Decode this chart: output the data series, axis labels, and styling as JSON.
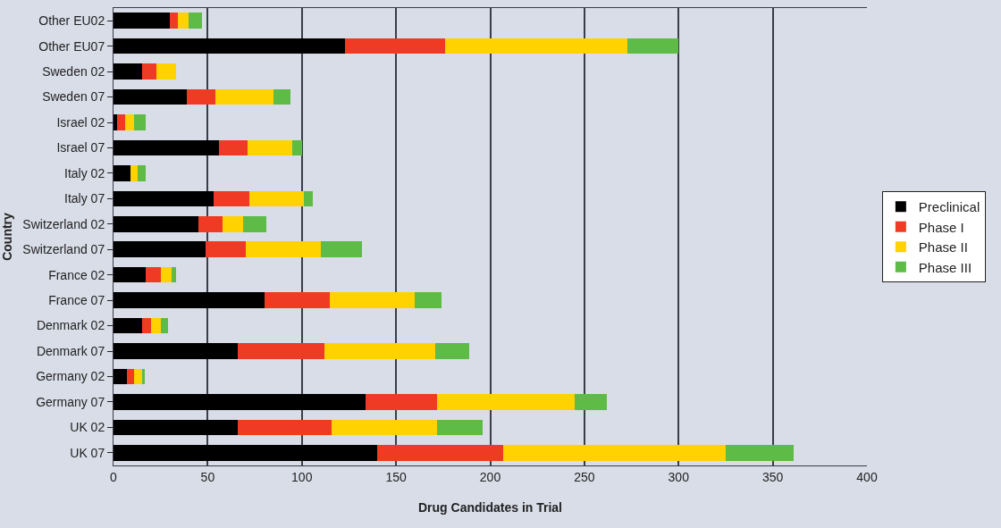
{
  "chart_data": {
    "type": "bar",
    "orientation": "horizontal",
    "stacked": true,
    "xlabel": "Drug Candidates in Trial",
    "ylabel": "Country",
    "categories": [
      "Other EU02",
      "Other EU07",
      "Sweden 02",
      "Sweden 07",
      "Israel 02",
      "Israel 07",
      "Italy 02",
      "Italy 07",
      "Switzerland 02",
      "Switzerland 07",
      "France 02",
      "France 07",
      "Denmark 02",
      "Denmark 07",
      "Germany 02",
      "Germany 07",
      "UK 02",
      "UK 07"
    ],
    "series": [
      {
        "name": "Preclinical",
        "color": "#000000",
        "values": [
          30,
          123,
          15,
          39,
          2,
          56,
          9,
          53,
          45,
          49,
          17,
          80,
          15,
          66,
          7,
          134,
          66,
          140
        ]
      },
      {
        "name": "Phase I",
        "color": "#ef3b24",
        "values": [
          4,
          53,
          8,
          15,
          4,
          15,
          0,
          19,
          13,
          21,
          8,
          35,
          5,
          46,
          4,
          38,
          50,
          67
        ]
      },
      {
        "name": "Phase II",
        "color": "#ffd200",
        "values": [
          6,
          97,
          10,
          31,
          5,
          24,
          4,
          29,
          11,
          40,
          6,
          45,
          5,
          59,
          4,
          73,
          56,
          118
        ]
      },
      {
        "name": "Phase III",
        "color": "#5dbb46",
        "values": [
          7,
          27,
          0,
          9,
          6,
          5,
          4,
          5,
          12,
          22,
          2,
          14,
          4,
          18,
          1.5,
          17,
          24,
          36
        ]
      }
    ],
    "xlim": [
      0,
      400
    ],
    "xticks": [
      0,
      50,
      100,
      150,
      200,
      250,
      300,
      350,
      400
    ],
    "grid": "x",
    "legend": "right"
  }
}
